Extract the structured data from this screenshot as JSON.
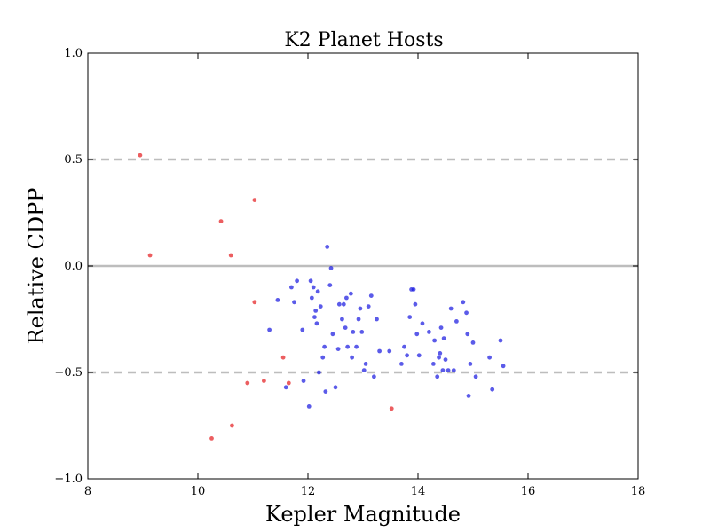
{
  "chart_data": {
    "type": "scatter",
    "title": "K2 Planet Hosts",
    "xlabel": "Kepler Magnitude",
    "ylabel": "Relative CDPP",
    "xlim": [
      8,
      18
    ],
    "ylim": [
      -1.0,
      1.0
    ],
    "xticks": [
      "8",
      "10",
      "12",
      "14",
      "16",
      "18"
    ],
    "yticks": [
      "1.0",
      "0.5",
      "0.0",
      "−0.5",
      "−1.0"
    ],
    "xtick_values": [
      8,
      10,
      12,
      14,
      16,
      18
    ],
    "ytick_values": [
      1.0,
      0.5,
      0.0,
      -0.5,
      -1.0
    ],
    "reference_lines": [
      {
        "y": 0.5,
        "style": "dashed",
        "color": "#bdbdbd"
      },
      {
        "y": 0.0,
        "style": "solid",
        "color": "#bdbdbd"
      },
      {
        "y": -0.5,
        "style": "dashed",
        "color": "#bdbdbd"
      }
    ],
    "grid": false,
    "colors": {
      "red": "#e41a1c",
      "blue": "#1515e0",
      "reference": "#bdbdbd"
    },
    "series": [
      {
        "color": "#e41a1c",
        "points": [
          [
            8.95,
            0.52
          ],
          [
            9.13,
            0.05
          ],
          [
            10.42,
            0.21
          ],
          [
            10.6,
            0.05
          ],
          [
            11.03,
            0.31
          ],
          [
            11.03,
            -0.17
          ],
          [
            10.9,
            -0.55
          ],
          [
            11.2,
            -0.54
          ],
          [
            11.55,
            -0.43
          ],
          [
            11.65,
            -0.55
          ],
          [
            10.25,
            -0.81
          ],
          [
            10.62,
            -0.75
          ],
          [
            13.52,
            -0.67
          ]
        ]
      },
      {
        "color": "#1515e0",
        "points": [
          [
            11.3,
            -0.3
          ],
          [
            11.45,
            -0.16
          ],
          [
            11.6,
            -0.57
          ],
          [
            11.7,
            -0.1
          ],
          [
            11.75,
            -0.17
          ],
          [
            11.8,
            -0.07
          ],
          [
            11.9,
            -0.3
          ],
          [
            11.92,
            -0.54
          ],
          [
            12.02,
            -0.66
          ],
          [
            12.05,
            -0.07
          ],
          [
            12.07,
            -0.15
          ],
          [
            12.1,
            -0.1
          ],
          [
            12.12,
            -0.24
          ],
          [
            12.14,
            -0.21
          ],
          [
            12.16,
            -0.27
          ],
          [
            12.18,
            -0.12
          ],
          [
            12.2,
            -0.5
          ],
          [
            12.23,
            -0.19
          ],
          [
            12.27,
            -0.43
          ],
          [
            12.3,
            -0.38
          ],
          [
            12.32,
            -0.59
          ],
          [
            12.35,
            0.09
          ],
          [
            12.4,
            -0.09
          ],
          [
            12.42,
            -0.01
          ],
          [
            12.45,
            -0.32
          ],
          [
            12.5,
            -0.57
          ],
          [
            12.55,
            -0.39
          ],
          [
            12.57,
            -0.18
          ],
          [
            12.62,
            -0.25
          ],
          [
            12.65,
            -0.18
          ],
          [
            12.68,
            -0.29
          ],
          [
            12.7,
            -0.15
          ],
          [
            12.72,
            -0.38
          ],
          [
            12.78,
            -0.13
          ],
          [
            12.8,
            -0.43
          ],
          [
            12.82,
            -0.31
          ],
          [
            12.88,
            -0.38
          ],
          [
            12.92,
            -0.25
          ],
          [
            12.95,
            -0.2
          ],
          [
            12.98,
            -0.31
          ],
          [
            13.02,
            -0.49
          ],
          [
            13.05,
            -0.46
          ],
          [
            13.1,
            -0.19
          ],
          [
            13.15,
            -0.14
          ],
          [
            13.2,
            -0.52
          ],
          [
            13.25,
            -0.25
          ],
          [
            13.3,
            -0.4
          ],
          [
            13.48,
            -0.4
          ],
          [
            13.7,
            -0.46
          ],
          [
            13.75,
            -0.38
          ],
          [
            13.8,
            -0.42
          ],
          [
            13.85,
            -0.24
          ],
          [
            13.88,
            -0.11
          ],
          [
            13.92,
            -0.11
          ],
          [
            13.95,
            -0.18
          ],
          [
            13.98,
            -0.32
          ],
          [
            14.02,
            -0.42
          ],
          [
            14.08,
            -0.27
          ],
          [
            14.2,
            -0.31
          ],
          [
            14.28,
            -0.46
          ],
          [
            14.3,
            -0.35
          ],
          [
            14.35,
            -0.52
          ],
          [
            14.38,
            -0.43
          ],
          [
            14.4,
            -0.41
          ],
          [
            14.42,
            -0.29
          ],
          [
            14.45,
            -0.49
          ],
          [
            14.47,
            -0.34
          ],
          [
            14.5,
            -0.44
          ],
          [
            14.55,
            -0.49
          ],
          [
            14.6,
            -0.2
          ],
          [
            14.65,
            -0.49
          ],
          [
            14.7,
            -0.26
          ],
          [
            14.82,
            -0.17
          ],
          [
            14.88,
            -0.22
          ],
          [
            14.9,
            -0.32
          ],
          [
            14.92,
            -0.61
          ],
          [
            14.95,
            -0.46
          ],
          [
            15.0,
            -0.36
          ],
          [
            15.05,
            -0.52
          ],
          [
            15.3,
            -0.43
          ],
          [
            15.35,
            -0.58
          ],
          [
            15.5,
            -0.35
          ],
          [
            15.55,
            -0.47
          ]
        ]
      }
    ]
  }
}
